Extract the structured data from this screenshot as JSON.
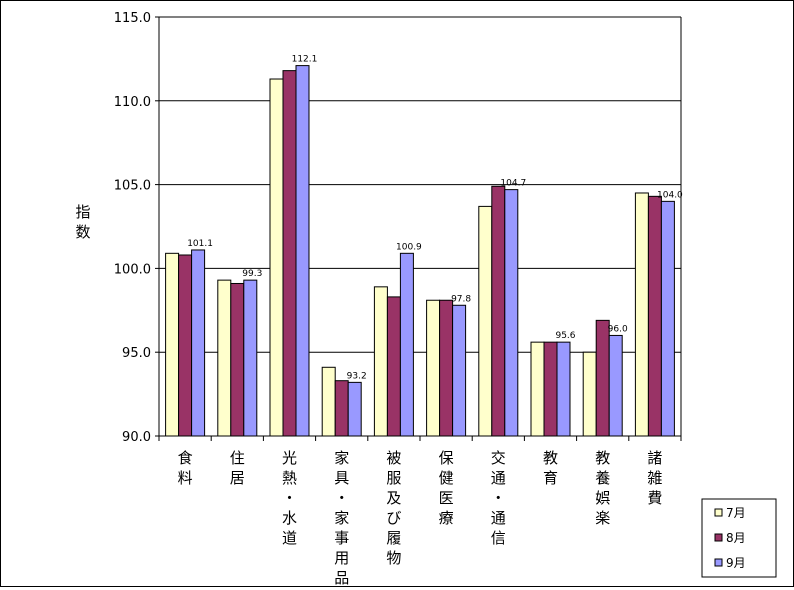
{
  "chart_data": {
    "type": "bar",
    "ylabel": "指数",
    "ylim": [
      90.0,
      115.0
    ],
    "yticks": [
      "115.0",
      "110.0",
      "105.0",
      "100.0",
      "95.0",
      "90.0"
    ],
    "grid": true,
    "legend_position": "bottom-right",
    "categories": [
      "食料",
      "住居",
      "光熱・水道",
      "家具・家事用品",
      "被服及び履物",
      "保健医療",
      "交通・通信",
      "教育",
      "教養娯楽",
      "諸雑費"
    ],
    "series": [
      {
        "name": "7月",
        "color": "#ffffcc",
        "values": [
          100.9,
          99.3,
          111.3,
          94.1,
          98.9,
          98.1,
          103.7,
          95.6,
          95.0,
          104.5
        ]
      },
      {
        "name": "8月",
        "color": "#993366",
        "values": [
          100.8,
          99.1,
          111.8,
          93.3,
          98.3,
          98.1,
          104.9,
          95.6,
          96.9,
          104.3
        ]
      },
      {
        "name": "9月",
        "color": "#9999ff",
        "values": [
          101.1,
          99.3,
          112.1,
          93.2,
          100.9,
          97.8,
          104.7,
          95.6,
          96.0,
          104.0
        ]
      }
    ],
    "data_labels": [
      "101.1",
      "99.3",
      "112.1",
      "93.2",
      "100.9",
      "97.8",
      "104.7",
      "95.6",
      "96.0",
      "104.0"
    ]
  }
}
